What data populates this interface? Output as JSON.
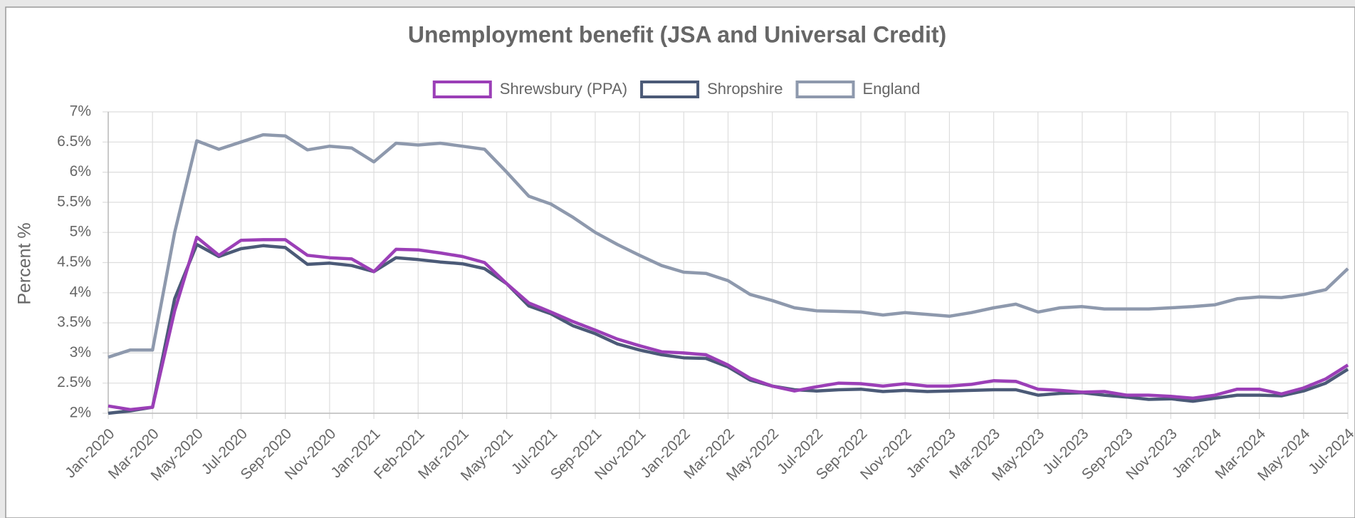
{
  "chart_data": {
    "type": "line",
    "title": "Unemployment benefit (JSA and Universal Credit)",
    "y_label": "Percent %",
    "categories": [
      "Jan-2020",
      null,
      "Mar-2020",
      null,
      "May-2020",
      null,
      "Jul-2020",
      null,
      "Sep-2020",
      null,
      "Nov-2020",
      null,
      "Jan-2021",
      null,
      "Feb-2021",
      null,
      "Mar-2021",
      null,
      "May-2021",
      null,
      "Jul-2021",
      null,
      "Sep-2021",
      null,
      "Nov-2021",
      null,
      "Jan-2022",
      null,
      "Mar-2022",
      null,
      "May-2022",
      null,
      "Jul-2022",
      null,
      "Sep-2022",
      null,
      "Nov-2022",
      null,
      "Jan-2023",
      null,
      "Mar-2023",
      null,
      "May-2023",
      null,
      "Jul-2023",
      null,
      "Sep-2023",
      null,
      "Nov-2023",
      null,
      "Jan-2024",
      null,
      "Mar-2024",
      null,
      "May-2024",
      null,
      "Jul-2024"
    ],
    "series": [
      {
        "name": "Shrewsbury (PPA)",
        "color": "#9b3fb7",
        "values": [
          2.12,
          2.06,
          2.1,
          3.7,
          4.92,
          4.62,
          4.87,
          4.88,
          4.88,
          4.62,
          4.58,
          4.56,
          4.35,
          4.72,
          4.71,
          4.66,
          4.6,
          4.5,
          4.15,
          3.83,
          3.68,
          3.52,
          3.38,
          3.23,
          3.12,
          3.02,
          3.0,
          2.97,
          2.8,
          2.58,
          2.45,
          2.37,
          2.44,
          2.5,
          2.49,
          2.45,
          2.49,
          2.45,
          2.45,
          2.48,
          2.54,
          2.53,
          2.4,
          2.38,
          2.35,
          2.36,
          2.3,
          2.3,
          2.28,
          2.25,
          2.3,
          2.4,
          2.4,
          2.32,
          2.42,
          2.57,
          2.8
        ]
      },
      {
        "name": "Shropshire",
        "color": "#4b5a77",
        "values": [
          2.0,
          2.04,
          2.1,
          3.9,
          4.8,
          4.6,
          4.73,
          4.78,
          4.75,
          4.47,
          4.49,
          4.45,
          4.35,
          4.58,
          4.55,
          4.51,
          4.48,
          4.4,
          4.15,
          3.78,
          3.65,
          3.45,
          3.32,
          3.15,
          3.05,
          2.97,
          2.92,
          2.91,
          2.77,
          2.55,
          2.45,
          2.39,
          2.37,
          2.39,
          2.4,
          2.36,
          2.38,
          2.36,
          2.37,
          2.38,
          2.39,
          2.39,
          2.3,
          2.33,
          2.34,
          2.3,
          2.27,
          2.23,
          2.24,
          2.2,
          2.25,
          2.3,
          2.3,
          2.29,
          2.37,
          2.5,
          2.73
        ]
      },
      {
        "name": "England",
        "color": "#8e99ad",
        "values": [
          2.93,
          3.05,
          3.05,
          5.0,
          6.52,
          6.38,
          6.5,
          6.62,
          6.6,
          6.37,
          6.43,
          6.4,
          6.17,
          6.48,
          6.45,
          6.48,
          6.43,
          6.38,
          6.0,
          5.6,
          5.47,
          5.25,
          5.0,
          4.8,
          4.62,
          4.45,
          4.34,
          4.32,
          4.2,
          3.97,
          3.87,
          3.75,
          3.7,
          3.69,
          3.68,
          3.63,
          3.67,
          3.64,
          3.61,
          3.67,
          3.75,
          3.81,
          3.68,
          3.75,
          3.77,
          3.73,
          3.73,
          3.73,
          3.75,
          3.77,
          3.8,
          3.9,
          3.93,
          3.92,
          3.97,
          4.05,
          4.4
        ]
      }
    ],
    "ylim": [
      2,
      7
    ],
    "yticks": [
      {
        "value": 2,
        "label": "2%"
      },
      {
        "value": 2.5,
        "label": "2.5%"
      },
      {
        "value": 3,
        "label": "3%"
      },
      {
        "value": 3.5,
        "label": "3.5%"
      },
      {
        "value": 4,
        "label": "4%"
      },
      {
        "value": 4.5,
        "label": "4.5%"
      },
      {
        "value": 5,
        "label": "5%"
      },
      {
        "value": 5.5,
        "label": "5.5%"
      },
      {
        "value": 6,
        "label": "6%"
      },
      {
        "value": 6.5,
        "label": "6.5%"
      },
      {
        "value": 7,
        "label": "7%"
      }
    ],
    "grid": true,
    "legend": "top"
  }
}
